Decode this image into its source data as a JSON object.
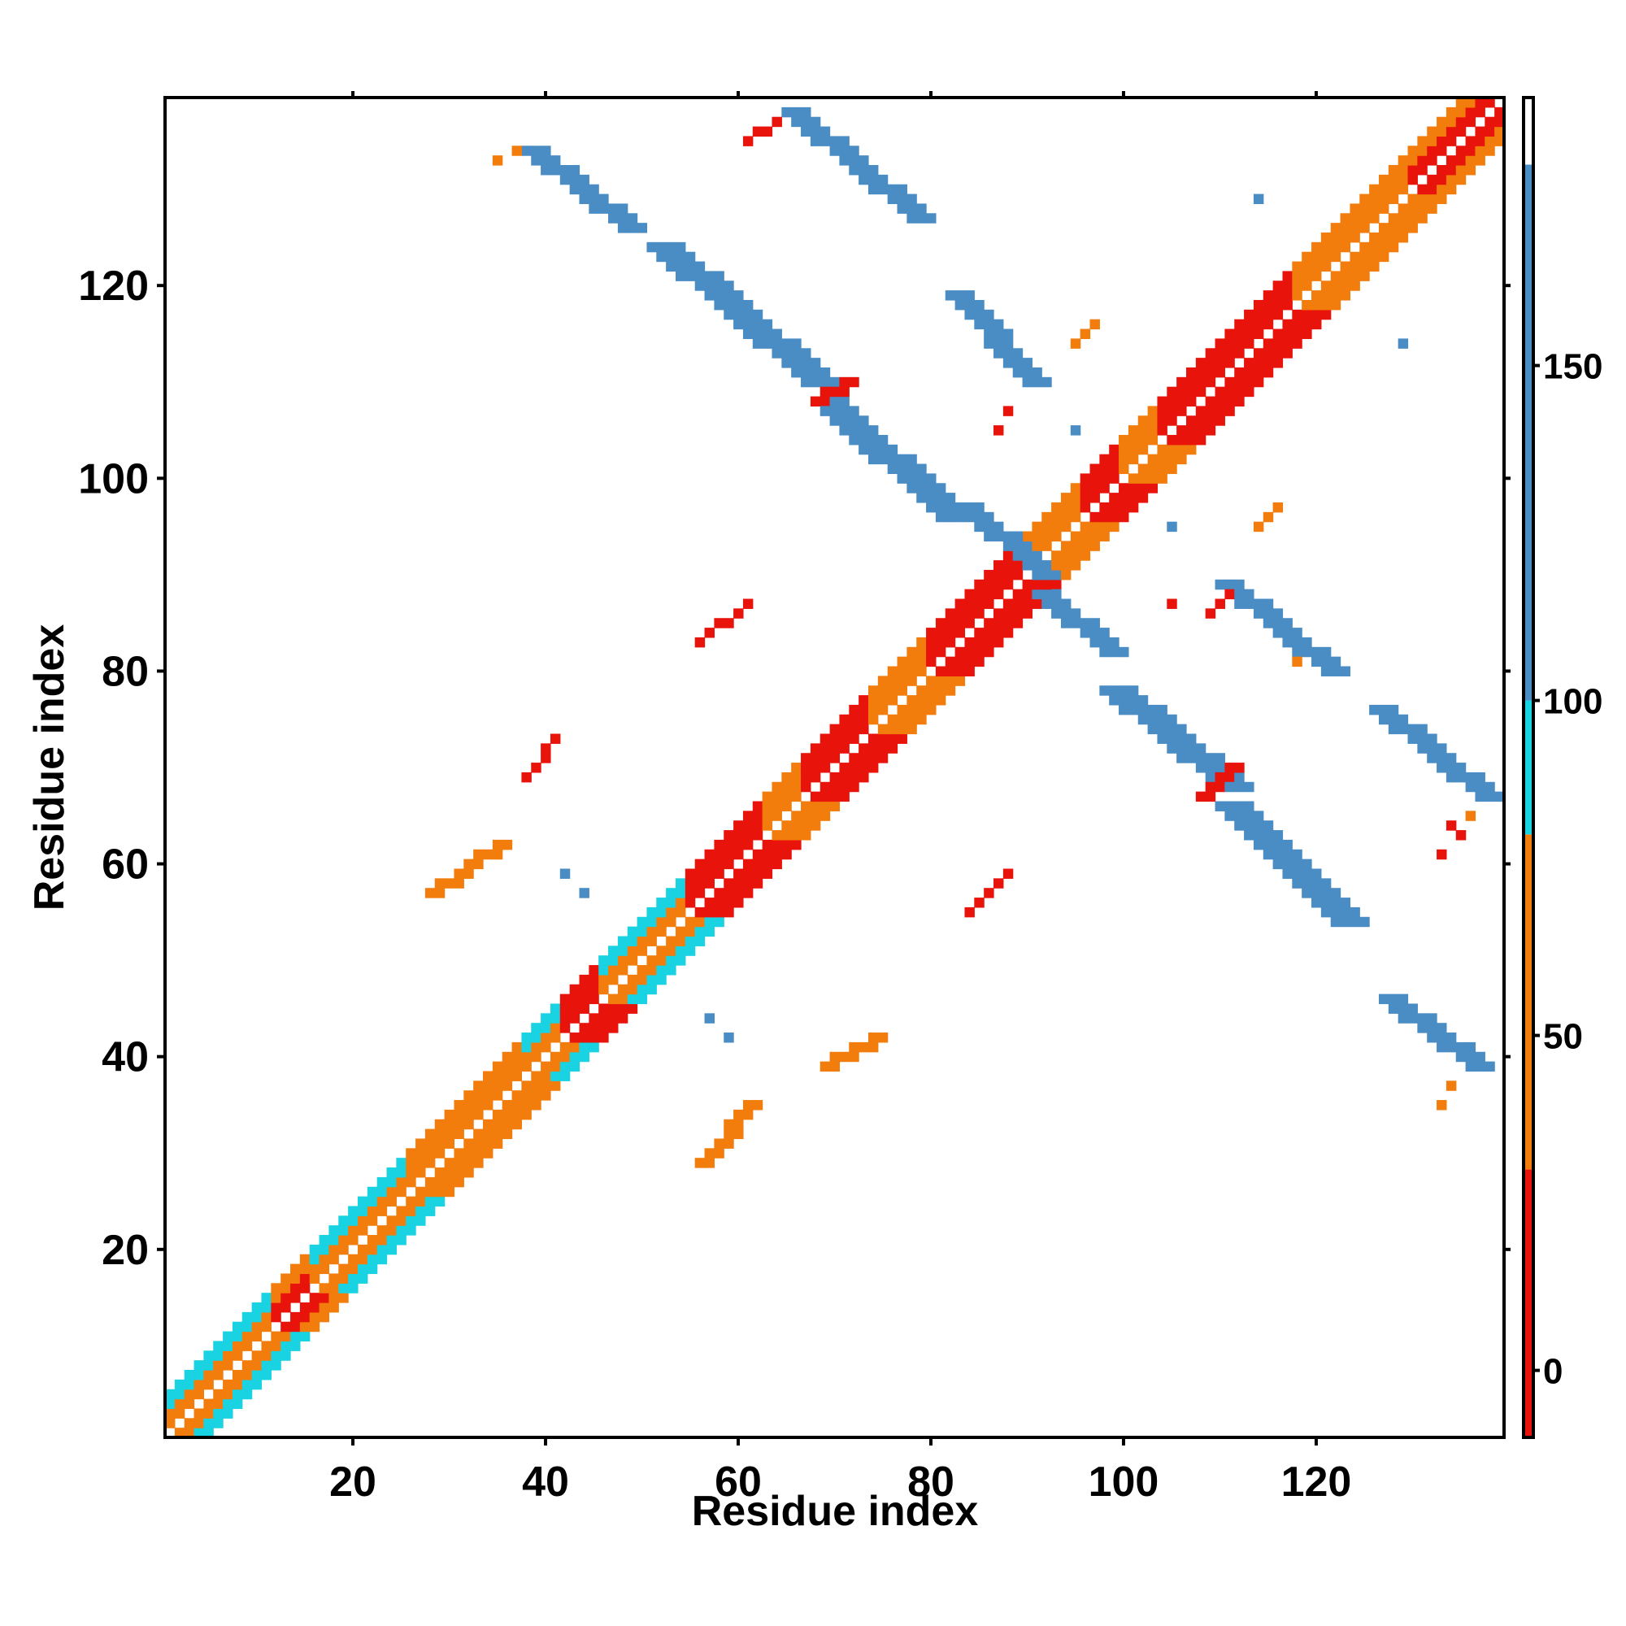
{
  "chart_data": {
    "type": "heatmap",
    "title": "",
    "xlabel": "Residue index",
    "ylabel": "Residue index",
    "xlim": [
      1,
      139
    ],
    "ylim": [
      1,
      139
    ],
    "x_ticks": [
      20,
      40,
      60,
      80,
      100,
      120
    ],
    "y_ticks": [
      20,
      40,
      60,
      80,
      100,
      120
    ],
    "colorbar": {
      "range": [
        -10,
        190
      ],
      "ticks": [
        0,
        50,
        100,
        150
      ],
      "bands": [
        {
          "from": -10,
          "to": 30,
          "color": "#e8140c"
        },
        {
          "from": 30,
          "to": 80,
          "color": "#f27d0c"
        },
        {
          "from": 80,
          "to": 100,
          "color": "#19d2e2"
        },
        {
          "from": 100,
          "to": 180,
          "color": "#4a8cc4"
        },
        {
          "from": 180,
          "to": 190,
          "color": "#ffffff"
        }
      ]
    },
    "grid": false,
    "cell_categories": [
      {
        "name": "red",
        "color": "#e8140c"
      },
      {
        "name": "orange",
        "color": "#f27d0c"
      },
      {
        "name": "cyan",
        "color": "#19d2e2"
      },
      {
        "name": "blue",
        "color": "#4a8cc4"
      }
    ],
    "diagonal_bands": [
      {
        "from": 1,
        "to": 12,
        "inner": "orange",
        "outer": "cyan"
      },
      {
        "from": 12,
        "to": 16,
        "inner": "red",
        "outer": "orange"
      },
      {
        "from": 16,
        "to": 26,
        "inner": "orange",
        "outer": "cyan"
      },
      {
        "from": 26,
        "to": 38,
        "inner": "orange",
        "outer": "orange"
      },
      {
        "from": 38,
        "to": 42,
        "inner": "orange",
        "outer": "cyan"
      },
      {
        "from": 42,
        "to": 46,
        "inner": "red",
        "outer": "red"
      },
      {
        "from": 46,
        "to": 55,
        "inner": "orange",
        "outer": "cyan"
      },
      {
        "from": 55,
        "to": 63,
        "inner": "red",
        "outer": "red"
      },
      {
        "from": 63,
        "to": 67,
        "inner": "orange",
        "outer": "orange"
      },
      {
        "from": 67,
        "to": 74,
        "inner": "red",
        "outer": "red"
      },
      {
        "from": 74,
        "to": 80,
        "inner": "orange",
        "outer": "orange"
      },
      {
        "from": 80,
        "to": 90,
        "inner": "red",
        "outer": "red"
      },
      {
        "from": 90,
        "to": 96,
        "inner": "orange",
        "outer": "orange"
      },
      {
        "from": 96,
        "to": 100,
        "inner": "red",
        "outer": "red"
      },
      {
        "from": 100,
        "to": 104,
        "inner": "orange",
        "outer": "orange"
      },
      {
        "from": 104,
        "to": 118,
        "inner": "red",
        "outer": "red"
      },
      {
        "from": 118,
        "to": 130,
        "inner": "orange",
        "outer": "orange"
      },
      {
        "from": 130,
        "to": 139,
        "inner": "red",
        "outer": "orange"
      }
    ],
    "off_diagonal_strands": [
      {
        "x": [
          38,
          48
        ],
        "y": [
          134,
          126
        ],
        "color": "blue",
        "width": 3
      },
      {
        "x": [
          65,
          78
        ],
        "y": [
          138,
          127
        ],
        "color": "blue",
        "width": 3
      },
      {
        "x": [
          51,
          67
        ],
        "y": [
          124,
          110
        ],
        "color": "blue",
        "width": 4
      },
      {
        "x": [
          68,
          81
        ],
        "y": [
          108,
          96
        ],
        "color": "blue",
        "width": 4
      },
      {
        "x": [
          82,
          90
        ],
        "y": [
          119,
          110
        ],
        "color": "blue",
        "width": 3
      },
      {
        "x": [
          83,
          91
        ],
        "y": [
          97,
          90
        ],
        "color": "blue",
        "width": 3
      },
      {
        "x": [
          91,
          98
        ],
        "y": [
          88,
          82
        ],
        "color": "blue",
        "width": 3
      },
      {
        "x": [
          110,
          121
        ],
        "y": [
          89,
          80
        ],
        "color": "blue",
        "width": 3
      },
      {
        "x": [
          98,
          110
        ],
        "y": [
          78,
          68
        ],
        "color": "blue",
        "width": 4
      },
      {
        "x": [
          110,
          122
        ],
        "y": [
          66,
          54
        ],
        "color": "blue",
        "width": 4
      },
      {
        "x": [
          126,
          137
        ],
        "y": [
          76,
          67
        ],
        "color": "blue",
        "width": 3
      },
      {
        "x": [
          127,
          136
        ],
        "y": [
          46,
          39
        ],
        "color": "blue",
        "width": 3
      },
      {
        "x": [
          56,
          61
        ],
        "y": [
          29,
          35
        ],
        "color": "orange",
        "width": 2
      },
      {
        "x": [
          69,
          74
        ],
        "y": [
          39,
          42
        ],
        "color": "orange",
        "width": 2
      },
      {
        "x": [
          28,
          35
        ],
        "y": [
          57,
          62
        ],
        "color": "orange",
        "width": 2
      },
      {
        "x": [
          38,
          41
        ],
        "y": [
          69,
          73
        ],
        "color": "red",
        "width": 1
      },
      {
        "x": [
          56,
          61
        ],
        "y": [
          83,
          87
        ],
        "color": "red",
        "width": 1
      },
      {
        "x": [
          84,
          88
        ],
        "y": [
          55,
          59
        ],
        "color": "red",
        "width": 1
      },
      {
        "x": [
          68,
          71
        ],
        "y": [
          108,
          110
        ],
        "color": "red",
        "width": 2
      },
      {
        "x": [
          61,
          64
        ],
        "y": [
          135,
          137
        ],
        "color": "red",
        "width": 1
      },
      {
        "x": [
          108,
          111
        ],
        "y": [
          67,
          70
        ],
        "color": "red",
        "width": 2
      },
      {
        "x": [
          95,
          97
        ],
        "y": [
          114,
          116
        ],
        "color": "orange",
        "width": 1
      },
      {
        "x": [
          109,
          111
        ],
        "y": [
          86,
          88
        ],
        "color": "red",
        "width": 1
      },
      {
        "x": [
          114,
          116
        ],
        "y": [
          95,
          97
        ],
        "color": "orange",
        "width": 1
      }
    ],
    "isolated_cells": [
      {
        "x": 42,
        "y": 59,
        "color": "blue"
      },
      {
        "x": 44,
        "y": 57,
        "color": "blue"
      },
      {
        "x": 57,
        "y": 44,
        "color": "blue"
      },
      {
        "x": 59,
        "y": 42,
        "color": "blue"
      },
      {
        "x": 95,
        "y": 105,
        "color": "blue"
      },
      {
        "x": 105,
        "y": 95,
        "color": "blue"
      },
      {
        "x": 114,
        "y": 129,
        "color": "blue"
      },
      {
        "x": 129,
        "y": 114,
        "color": "blue"
      },
      {
        "x": 87,
        "y": 105,
        "color": "red"
      },
      {
        "x": 105,
        "y": 87,
        "color": "red"
      },
      {
        "x": 88,
        "y": 107,
        "color": "red"
      },
      {
        "x": 135,
        "y": 63,
        "color": "red"
      },
      {
        "x": 134,
        "y": 64,
        "color": "red"
      },
      {
        "x": 133,
        "y": 61,
        "color": "red"
      },
      {
        "x": 136,
        "y": 65,
        "color": "orange"
      },
      {
        "x": 133,
        "y": 35,
        "color": "orange"
      },
      {
        "x": 134,
        "y": 37,
        "color": "orange"
      },
      {
        "x": 35,
        "y": 133,
        "color": "orange"
      },
      {
        "x": 37,
        "y": 134,
        "color": "orange"
      },
      {
        "x": 118,
        "y": 81,
        "color": "orange"
      }
    ]
  }
}
